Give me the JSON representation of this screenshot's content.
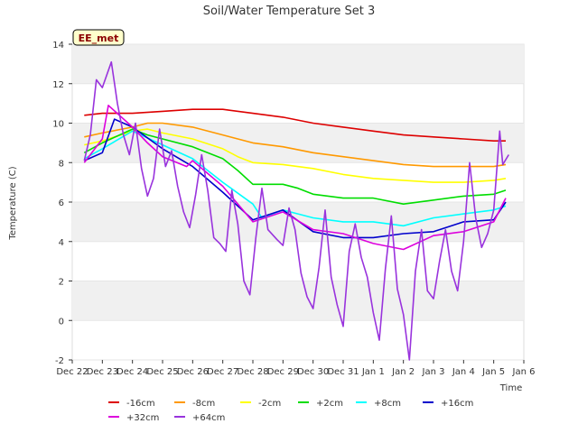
{
  "chart_data": {
    "type": "line",
    "title": "Soil/Water Temperature Set 3",
    "xlabel": "Time",
    "ylabel": "Temperature (C)",
    "badge": "EE_met",
    "ylim": [
      -2,
      14
    ],
    "yticks": [
      -2,
      0,
      2,
      4,
      6,
      8,
      10,
      12,
      14
    ],
    "xlim": [
      0,
      15
    ],
    "xticks": [
      0,
      1,
      2,
      3,
      4,
      5,
      6,
      7,
      8,
      9,
      10,
      11,
      12,
      13,
      14,
      15
    ],
    "xtick_labels": [
      "Dec 22",
      "Dec 23",
      "Dec 24",
      "Dec 25",
      "Dec 26",
      "Dec 27",
      "Dec 28",
      "Dec 29",
      "Dec 30",
      "Dec 31",
      "Jan 1",
      "Jan 2",
      "Jan 3",
      "Jan 4",
      "Jan 5",
      "Jan 6"
    ],
    "grid": "horizontal-bands",
    "legend_placement": "bottom",
    "series": [
      {
        "name": "-16cm",
        "color": "#dd0000",
        "points": [
          [
            0.4,
            10.4
          ],
          [
            1,
            10.5
          ],
          [
            2,
            10.5
          ],
          [
            3,
            10.6
          ],
          [
            4,
            10.7
          ],
          [
            4.5,
            10.7
          ],
          [
            5,
            10.7
          ],
          [
            6,
            10.5
          ],
          [
            7,
            10.3
          ],
          [
            8,
            10.0
          ],
          [
            9,
            9.8
          ],
          [
            10,
            9.6
          ],
          [
            11,
            9.4
          ],
          [
            12,
            9.3
          ],
          [
            13,
            9.2
          ],
          [
            14,
            9.1
          ],
          [
            14.4,
            9.1
          ]
        ]
      },
      {
        "name": "-8cm",
        "color": "#ff9900",
        "points": [
          [
            0.4,
            9.3
          ],
          [
            1,
            9.5
          ],
          [
            2,
            9.8
          ],
          [
            2.5,
            10.0
          ],
          [
            3,
            10.0
          ],
          [
            4,
            9.8
          ],
          [
            5,
            9.4
          ],
          [
            6,
            9.0
          ],
          [
            7,
            8.8
          ],
          [
            8,
            8.5
          ],
          [
            9,
            8.3
          ],
          [
            10,
            8.1
          ],
          [
            11,
            7.9
          ],
          [
            12,
            7.8
          ],
          [
            13,
            7.8
          ],
          [
            14,
            7.8
          ],
          [
            14.4,
            7.9
          ]
        ]
      },
      {
        "name": "-2cm",
        "color": "#ffff00",
        "points": [
          [
            0.4,
            8.9
          ],
          [
            1,
            9.1
          ],
          [
            2,
            9.6
          ],
          [
            2.5,
            9.7
          ],
          [
            3,
            9.5
          ],
          [
            4,
            9.2
          ],
          [
            5,
            8.7
          ],
          [
            5.5,
            8.3
          ],
          [
            6,
            8.0
          ],
          [
            7,
            7.9
          ],
          [
            8,
            7.7
          ],
          [
            9,
            7.4
          ],
          [
            10,
            7.2
          ],
          [
            11,
            7.1
          ],
          [
            12,
            7.0
          ],
          [
            13,
            7.0
          ],
          [
            14,
            7.1
          ],
          [
            14.4,
            7.2
          ]
        ]
      },
      {
        "name": "+2cm",
        "color": "#00dd00",
        "points": [
          [
            0.4,
            8.5
          ],
          [
            1,
            9.0
          ],
          [
            2,
            9.7
          ],
          [
            2.5,
            9.4
          ],
          [
            3,
            9.2
          ],
          [
            4,
            8.8
          ],
          [
            5,
            8.2
          ],
          [
            5.5,
            7.6
          ],
          [
            6,
            6.9
          ],
          [
            7,
            6.9
          ],
          [
            7.5,
            6.7
          ],
          [
            8,
            6.4
          ],
          [
            9,
            6.2
          ],
          [
            10,
            6.2
          ],
          [
            11,
            5.9
          ],
          [
            12,
            6.1
          ],
          [
            13,
            6.3
          ],
          [
            14,
            6.4
          ],
          [
            14.4,
            6.6
          ]
        ]
      },
      {
        "name": "+8cm",
        "color": "#00ffff",
        "points": [
          [
            0.4,
            8.2
          ],
          [
            1,
            8.7
          ],
          [
            2,
            9.6
          ],
          [
            3,
            8.9
          ],
          [
            4,
            8.2
          ],
          [
            5,
            7.0
          ],
          [
            6,
            5.9
          ],
          [
            6.3,
            5.2
          ],
          [
            7,
            5.6
          ],
          [
            7.5,
            5.4
          ],
          [
            8,
            5.2
          ],
          [
            9,
            5.0
          ],
          [
            10,
            5.0
          ],
          [
            11,
            4.8
          ],
          [
            12,
            5.2
          ],
          [
            13,
            5.4
          ],
          [
            14,
            5.6
          ],
          [
            14.4,
            5.8
          ]
        ]
      },
      {
        "name": "+16cm",
        "color": "#0000cc",
        "points": [
          [
            0.4,
            8.1
          ],
          [
            1,
            8.5
          ],
          [
            1.4,
            10.2
          ],
          [
            2,
            9.8
          ],
          [
            3,
            8.7
          ],
          [
            4,
            7.8
          ],
          [
            5,
            6.5
          ],
          [
            6,
            5.1
          ],
          [
            7,
            5.6
          ],
          [
            8,
            4.5
          ],
          [
            9,
            4.2
          ],
          [
            10,
            4.2
          ],
          [
            11,
            4.4
          ],
          [
            12,
            4.5
          ],
          [
            13,
            5.0
          ],
          [
            14,
            5.1
          ],
          [
            14.4,
            6.0
          ]
        ]
      },
      {
        "name": "+32cm",
        "color": "#dd00dd",
        "points": [
          [
            0.4,
            8.0
          ],
          [
            1,
            9.2
          ],
          [
            1.2,
            10.9
          ],
          [
            2,
            9.8
          ],
          [
            2.5,
            9.0
          ],
          [
            3,
            8.3
          ],
          [
            3.8,
            7.8
          ],
          [
            4,
            8.1
          ],
          [
            5,
            6.8
          ],
          [
            6,
            5.0
          ],
          [
            7,
            5.5
          ],
          [
            8,
            4.6
          ],
          [
            9,
            4.4
          ],
          [
            10,
            3.9
          ],
          [
            11,
            3.6
          ],
          [
            12,
            4.3
          ],
          [
            13,
            4.5
          ],
          [
            14,
            5.0
          ],
          [
            14.4,
            6.2
          ]
        ]
      },
      {
        "name": "+64cm",
        "color": "#9933dd",
        "points": [
          [
            0.4,
            8.1
          ],
          [
            0.6,
            9.4
          ],
          [
            0.8,
            12.2
          ],
          [
            1.0,
            11.8
          ],
          [
            1.3,
            13.1
          ],
          [
            1.5,
            11.0
          ],
          [
            1.7,
            9.4
          ],
          [
            1.9,
            8.4
          ],
          [
            2.1,
            10.0
          ],
          [
            2.3,
            7.7
          ],
          [
            2.5,
            6.3
          ],
          [
            2.7,
            7.2
          ],
          [
            2.9,
            9.7
          ],
          [
            3.1,
            7.8
          ],
          [
            3.3,
            8.6
          ],
          [
            3.5,
            6.8
          ],
          [
            3.7,
            5.5
          ],
          [
            3.9,
            4.7
          ],
          [
            4.1,
            6.4
          ],
          [
            4.3,
            8.4
          ],
          [
            4.5,
            6.6
          ],
          [
            4.7,
            4.2
          ],
          [
            4.9,
            3.9
          ],
          [
            5.1,
            3.5
          ],
          [
            5.3,
            6.6
          ],
          [
            5.5,
            4.9
          ],
          [
            5.7,
            2.0
          ],
          [
            5.9,
            1.3
          ],
          [
            6.1,
            4.2
          ],
          [
            6.3,
            6.7
          ],
          [
            6.5,
            4.6
          ],
          [
            6.8,
            4.1
          ],
          [
            7.0,
            3.8
          ],
          [
            7.2,
            5.7
          ],
          [
            7.4,
            4.6
          ],
          [
            7.6,
            2.4
          ],
          [
            7.8,
            1.2
          ],
          [
            8.0,
            0.6
          ],
          [
            8.2,
            2.7
          ],
          [
            8.4,
            5.6
          ],
          [
            8.6,
            2.2
          ],
          [
            8.8,
            0.8
          ],
          [
            9.0,
            -0.3
          ],
          [
            9.2,
            3.5
          ],
          [
            9.4,
            4.9
          ],
          [
            9.6,
            3.2
          ],
          [
            9.8,
            2.2
          ],
          [
            10.0,
            0.4
          ],
          [
            10.2,
            -1.0
          ],
          [
            10.4,
            2.6
          ],
          [
            10.6,
            5.3
          ],
          [
            10.8,
            1.6
          ],
          [
            11.0,
            0.3
          ],
          [
            11.2,
            -2.0
          ],
          [
            11.4,
            2.5
          ],
          [
            11.6,
            4.6
          ],
          [
            11.8,
            1.5
          ],
          [
            12.0,
            1.1
          ],
          [
            12.2,
            3.0
          ],
          [
            12.4,
            4.6
          ],
          [
            12.6,
            2.5
          ],
          [
            12.8,
            1.5
          ],
          [
            13.0,
            4.0
          ],
          [
            13.2,
            8.0
          ],
          [
            13.4,
            5.2
          ],
          [
            13.6,
            3.7
          ],
          [
            13.8,
            4.4
          ],
          [
            14.0,
            5.6
          ],
          [
            14.2,
            9.6
          ],
          [
            14.3,
            7.9
          ],
          [
            14.5,
            8.4
          ]
        ]
      }
    ]
  }
}
